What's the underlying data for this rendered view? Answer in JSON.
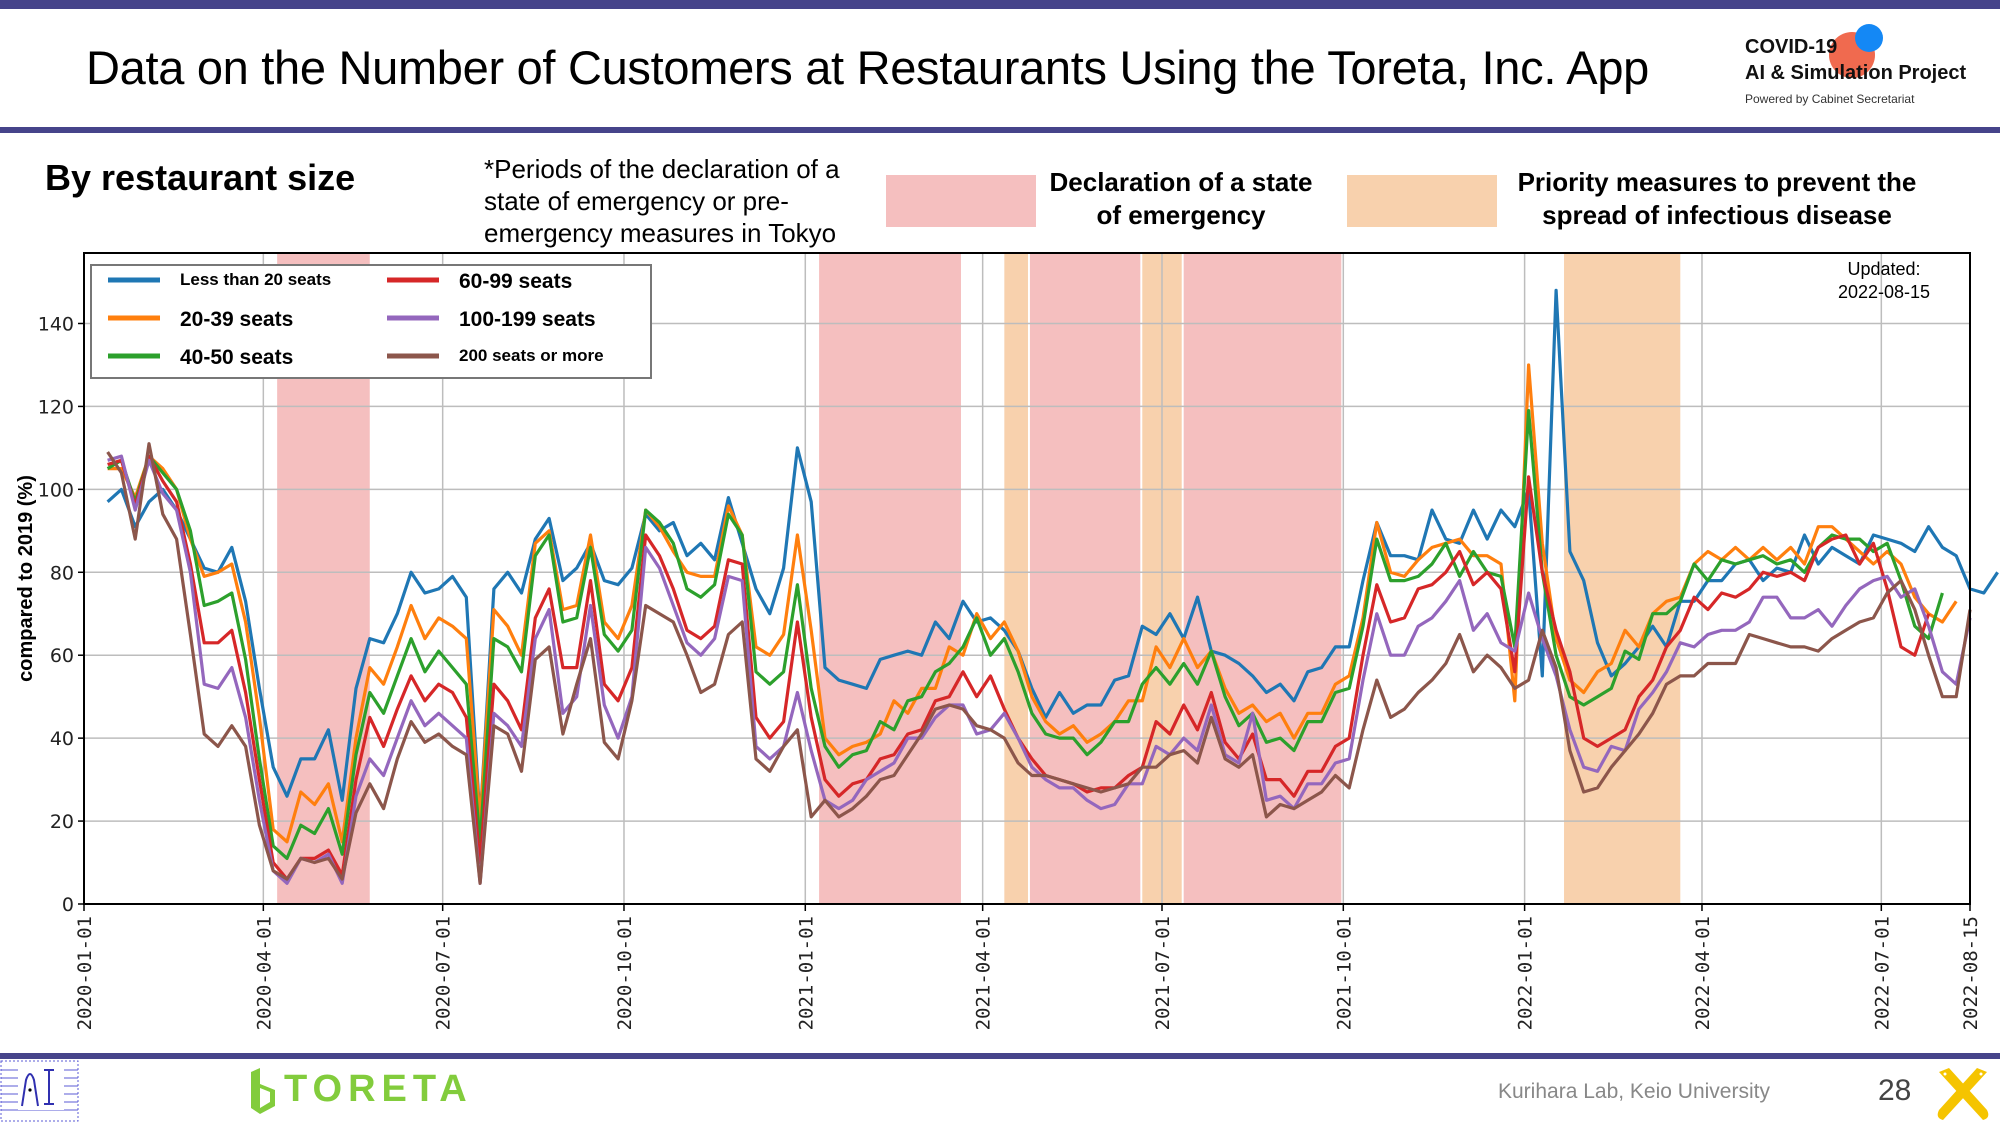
{
  "header": {
    "title": "Data on the Number of Customers at Restaurants Using the Toreta, Inc. App",
    "logo": {
      "line1": "COVID-19",
      "line2": "AI & Simulation Project",
      "line3": "Powered by Cabinet Secretariat"
    }
  },
  "subtitle": "By restaurant size",
  "note": "*Periods of the declaration of a state of emergency or pre-emergency measures in Tokyo",
  "period_legend": [
    {
      "label": "Declaration of a state of emergency",
      "color": "#f5bfbf"
    },
    {
      "label": "Priority measures to prevent the spread of infectious disease",
      "color": "#f8d1ad"
    }
  ],
  "footer": {
    "toreta_logo": "TORETA",
    "lab": "Kurihara Lab, Keio University",
    "page": "28",
    "ai_logo_icon": "ai-lab-logo-icon",
    "x_logo_icon": "crossed-pens-logo-icon"
  },
  "chart_data": {
    "type": "line",
    "title": "",
    "xlabel": "",
    "ylabel": "compared to 2019 (%)",
    "ylim": [
      0,
      157
    ],
    "yticks": [
      0,
      20,
      40,
      60,
      80,
      100,
      120,
      140
    ],
    "xlim": [
      "2020-01-01",
      "2022-08-15"
    ],
    "xticks": [
      "2020-01-01",
      "2020-04-01",
      "2020-07-01",
      "2020-10-01",
      "2021-01-01",
      "2021-04-01",
      "2021-07-01",
      "2021-10-01",
      "2022-01-01",
      "2022-04-01",
      "2022-07-01",
      "2022-08-15"
    ],
    "grid": true,
    "legend_position": "top-left",
    "annotation": {
      "line1": "Updated:",
      "line2": "2022-08-15"
    },
    "x_start": "2020-01-13",
    "x_step_days": 7,
    "periods": [
      {
        "type": "emergency",
        "start": "2020-04-08",
        "end": "2020-05-25"
      },
      {
        "type": "emergency",
        "start": "2021-01-08",
        "end": "2021-03-21"
      },
      {
        "type": "priority",
        "start": "2021-04-12",
        "end": "2021-04-24"
      },
      {
        "type": "emergency",
        "start": "2021-04-25",
        "end": "2021-06-20"
      },
      {
        "type": "priority",
        "start": "2021-06-21",
        "end": "2021-07-11"
      },
      {
        "type": "emergency",
        "start": "2021-07-12",
        "end": "2021-09-30"
      },
      {
        "type": "priority",
        "start": "2022-01-21",
        "end": "2022-03-21"
      }
    ],
    "series": [
      {
        "name": "Less than 20 seats",
        "color": "#1f77b4",
        "values": [
          97,
          100,
          91,
          97,
          100,
          95,
          88,
          81,
          80,
          86,
          73,
          52,
          33,
          26,
          35,
          35,
          42,
          25,
          52,
          64,
          63,
          70,
          80,
          75,
          76,
          79,
          74,
          20,
          76,
          80,
          75,
          88,
          93,
          78,
          81,
          87,
          78,
          77,
          81,
          94,
          90,
          92,
          84,
          87,
          83,
          98,
          87,
          76,
          70,
          81,
          110,
          97,
          57,
          54,
          53,
          52,
          59,
          60,
          61,
          60,
          68,
          64,
          73,
          68,
          69,
          66,
          61,
          52,
          45,
          51,
          46,
          48,
          48,
          54,
          55,
          67,
          65,
          70,
          64,
          74,
          61,
          60,
          58,
          55,
          51,
          53,
          49,
          56,
          57,
          62,
          62,
          78,
          92,
          84,
          84,
          83,
          95,
          88,
          87,
          95,
          88,
          95,
          91,
          100,
          55,
          148,
          85,
          78,
          63,
          55,
          58,
          62,
          67,
          62,
          73,
          73,
          78,
          78,
          82,
          83,
          78,
          81,
          80,
          89,
          82,
          86,
          84,
          82,
          89,
          88,
          87,
          85,
          91,
          86,
          84,
          76,
          75,
          80
        ]
      },
      {
        "name": "20-39 seats",
        "color": "#ff7f0e",
        "values": [
          105,
          105,
          98,
          108,
          105,
          100,
          88,
          79,
          80,
          82,
          68,
          45,
          18,
          15,
          27,
          24,
          29,
          15,
          40,
          57,
          53,
          62,
          72,
          64,
          69,
          67,
          64,
          20,
          71,
          67,
          60,
          87,
          90,
          71,
          72,
          89,
          68,
          64,
          72,
          95,
          91,
          85,
          80,
          79,
          79,
          96,
          89,
          62,
          60,
          65,
          89,
          66,
          40,
          36,
          38,
          39,
          41,
          49,
          46,
          52,
          52,
          62,
          60,
          70,
          64,
          68,
          61,
          50,
          44,
          41,
          43,
          39,
          41,
          44,
          49,
          49,
          62,
          57,
          64,
          57,
          61,
          52,
          46,
          48,
          44,
          46,
          40,
          46,
          46,
          53,
          55,
          69,
          92,
          80,
          79,
          83,
          86,
          87,
          88,
          84,
          84,
          82,
          49,
          130,
          87,
          64,
          54,
          51,
          56,
          58,
          66,
          62,
          70,
          73,
          74,
          82,
          85,
          83,
          86,
          83,
          86,
          83,
          86,
          82,
          91,
          91,
          88,
          85,
          82,
          85,
          82,
          74,
          70,
          68,
          73
        ]
      },
      {
        "name": "40-50 seats",
        "color": "#2ca02c",
        "values": [
          105,
          107,
          97,
          108,
          104,
          100,
          90,
          72,
          73,
          75,
          59,
          35,
          14,
          11,
          19,
          17,
          23,
          12,
          36,
          51,
          46,
          55,
          64,
          56,
          61,
          57,
          53,
          15,
          64,
          62,
          56,
          84,
          89,
          68,
          69,
          86,
          65,
          61,
          66,
          95,
          92,
          87,
          76,
          74,
          77,
          94,
          89,
          56,
          53,
          56,
          77,
          52,
          38,
          33,
          36,
          37,
          44,
          42,
          49,
          50,
          56,
          58,
          62,
          69,
          60,
          64,
          56,
          46,
          41,
          40,
          40,
          36,
          39,
          44,
          44,
          53,
          57,
          53,
          58,
          53,
          61,
          50,
          43,
          46,
          39,
          40,
          37,
          44,
          44,
          51,
          52,
          67,
          88,
          78,
          78,
          79,
          82,
          87,
          79,
          85,
          80,
          79,
          62,
          119,
          80,
          60,
          50,
          48,
          50,
          52,
          61,
          59,
          70,
          70,
          73,
          82,
          78,
          83,
          82,
          83,
          84,
          82,
          83,
          80,
          86,
          89,
          88,
          88,
          85,
          87,
          78,
          67,
          64,
          75
        ]
      },
      {
        "name": "60-99 seats",
        "color": "#d62728",
        "values": [
          106,
          107,
          96,
          108,
          102,
          97,
          82,
          63,
          63,
          66,
          51,
          30,
          10,
          6,
          11,
          11,
          13,
          7,
          30,
          45,
          38,
          47,
          55,
          49,
          53,
          51,
          45,
          10,
          53,
          49,
          42,
          69,
          76,
          57,
          57,
          78,
          53,
          49,
          57,
          89,
          84,
          76,
          66,
          64,
          67,
          83,
          82,
          45,
          40,
          44,
          68,
          45,
          30,
          26,
          29,
          30,
          35,
          36,
          41,
          42,
          49,
          50,
          56,
          50,
          55,
          47,
          40,
          35,
          31,
          30,
          29,
          27,
          28,
          28,
          31,
          33,
          44,
          41,
          48,
          42,
          51,
          39,
          35,
          41,
          30,
          30,
          26,
          32,
          32,
          38,
          40,
          60,
          77,
          68,
          69,
          76,
          77,
          80,
          85,
          77,
          80,
          76,
          56,
          103,
          80,
          66,
          56,
          40,
          38,
          40,
          42,
          50,
          54,
          62,
          66,
          74,
          71,
          75,
          74,
          76,
          80,
          79,
          80,
          78,
          86,
          88,
          89,
          82,
          87,
          76,
          62,
          60,
          70
        ]
      },
      {
        "name": "100-199 seats",
        "color": "#9467bd",
        "values": [
          107,
          108,
          95,
          107,
          99,
          95,
          80,
          53,
          52,
          57,
          45,
          25,
          8,
          5,
          11,
          10,
          12,
          5,
          26,
          35,
          31,
          40,
          49,
          43,
          46,
          43,
          40,
          5,
          46,
          43,
          38,
          64,
          71,
          46,
          50,
          72,
          48,
          40,
          50,
          86,
          81,
          72,
          63,
          60,
          64,
          79,
          78,
          38,
          35,
          38,
          51,
          37,
          25,
          23,
          25,
          30,
          32,
          34,
          40,
          40,
          45,
          48,
          48,
          41,
          42,
          46,
          40,
          33,
          30,
          28,
          28,
          25,
          23,
          24,
          29,
          29,
          38,
          36,
          40,
          37,
          48,
          36,
          34,
          46,
          25,
          26,
          23,
          29,
          29,
          34,
          35,
          54,
          70,
          60,
          60,
          67,
          69,
          73,
          78,
          66,
          70,
          63,
          61,
          75,
          64,
          55,
          42,
          33,
          32,
          38,
          37,
          47,
          51,
          56,
          63,
          62,
          65,
          66,
          66,
          68,
          74,
          74,
          69,
          69,
          71,
          67,
          72,
          76,
          78,
          79,
          74,
          76,
          67,
          56,
          53,
          69
        ]
      },
      {
        "name": "200 seats or more",
        "color": "#8c564b",
        "values": [
          109,
          104,
          88,
          111,
          94,
          88,
          65,
          41,
          38,
          43,
          38,
          19,
          8,
          6,
          11,
          10,
          11,
          6,
          22,
          29,
          23,
          35,
          44,
          39,
          41,
          38,
          36,
          5,
          43,
          41,
          32,
          59,
          62,
          41,
          53,
          64,
          39,
          35,
          49,
          72,
          70,
          68,
          60,
          51,
          53,
          65,
          68,
          35,
          32,
          38,
          42,
          21,
          25,
          21,
          23,
          26,
          30,
          31,
          36,
          41,
          47,
          48,
          47,
          43,
          42,
          40,
          34,
          31,
          31,
          30,
          29,
          28,
          27,
          28,
          29,
          33,
          33,
          36,
          37,
          34,
          45,
          35,
          33,
          36,
          21,
          24,
          23,
          25,
          27,
          31,
          28,
          42,
          54,
          45,
          47,
          51,
          54,
          58,
          65,
          56,
          60,
          57,
          52,
          54,
          66,
          57,
          37,
          27,
          28,
          33,
          37,
          41,
          46,
          53,
          55,
          55,
          58,
          58,
          58,
          65,
          64,
          63,
          62,
          62,
          61,
          64,
          66,
          68,
          69,
          75,
          78,
          71,
          60,
          50,
          50,
          71
        ]
      }
    ]
  }
}
